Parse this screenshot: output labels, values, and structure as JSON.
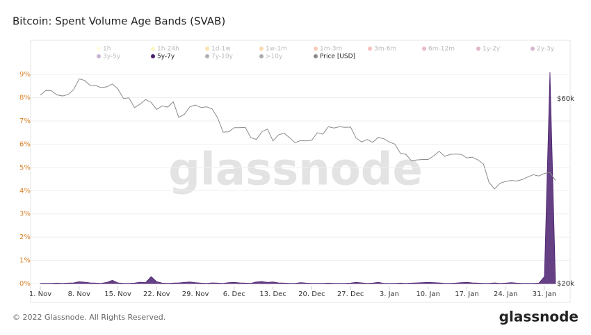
{
  "chart_data": {
    "type": "area_line",
    "title": "Bitcoin: Spent Volume Age Bands (SVAB)",
    "watermark": "glassnode",
    "footer": "© 2022 Glassnode. All Rights Reserved.",
    "logo": "glassnode",
    "categories": [
      "1. Nov",
      null,
      null,
      null,
      null,
      null,
      null,
      "8. Nov",
      null,
      null,
      null,
      null,
      null,
      null,
      "15. Nov",
      null,
      null,
      null,
      null,
      null,
      null,
      "22. Nov",
      null,
      null,
      null,
      null,
      null,
      null,
      "29. Nov",
      null,
      null,
      null,
      null,
      null,
      null,
      "6. Dec",
      null,
      null,
      null,
      null,
      null,
      null,
      "13. Dec",
      null,
      null,
      null,
      null,
      null,
      null,
      "20. Dec",
      null,
      null,
      null,
      null,
      null,
      null,
      "27. Dec",
      null,
      null,
      null,
      null,
      null,
      null,
      "3. Jan",
      null,
      null,
      null,
      null,
      null,
      null,
      "10. Jan",
      null,
      null,
      null,
      null,
      null,
      null,
      "17. Jan",
      null,
      null,
      null,
      null,
      null,
      null,
      "24. Jan",
      null,
      null,
      null,
      null,
      null,
      null,
      "31. Jan",
      null,
      null
    ],
    "ylim": [
      -0.12,
      9.9
    ],
    "yticks": [
      {
        "value": 0,
        "label": "0%"
      },
      {
        "value": 1,
        "label": "1%"
      },
      {
        "value": 2,
        "label": "2%"
      },
      {
        "value": 3,
        "label": "3%"
      },
      {
        "value": 4,
        "label": "4%"
      },
      {
        "value": 5,
        "label": "5%"
      },
      {
        "value": 6,
        "label": "6%"
      },
      {
        "value": 7,
        "label": "7%"
      },
      {
        "value": 8,
        "label": "8%"
      },
      {
        "value": 9,
        "label": "9%"
      }
    ],
    "y2lim": [
      19670,
      78500
    ],
    "y2ticks": [
      {
        "value": 20000,
        "label": "$20k"
      },
      {
        "value": 60000,
        "label": "$60k"
      }
    ],
    "y2_log_scale": true,
    "grid": true,
    "series": [
      {
        "name": "1h",
        "color": "#fff6a8",
        "visible": false
      },
      {
        "name": "1h-24h",
        "color": "#f7e14a",
        "visible": false
      },
      {
        "name": "1d-1w",
        "color": "#f2b818",
        "visible": false
      },
      {
        "name": "1w-1m",
        "color": "#f0921a",
        "visible": false
      },
      {
        "name": "1m-3m",
        "color": "#e8692b",
        "visible": false
      },
      {
        "name": "3m-6m",
        "color": "#e04a44",
        "visible": false
      },
      {
        "name": "6m-12m",
        "color": "#c83a58",
        "visible": false
      },
      {
        "name": "1y-2y",
        "color": "#a8306a",
        "visible": false
      },
      {
        "name": "2y-3y",
        "color": "#862d72",
        "visible": false
      },
      {
        "name": "3y-5y",
        "color": "#62287a",
        "visible": false
      },
      {
        "name": "5y-7y",
        "color": "#4a1f6e",
        "visible": true,
        "kind": "area",
        "values": [
          0.01,
          0.01,
          0.01,
          0.02,
          0.01,
          0.02,
          0.03,
          0.08,
          0.06,
          0.03,
          0.02,
          0.01,
          0.05,
          0.14,
          0.03,
          0.01,
          0.01,
          0.02,
          0.06,
          0.04,
          0.3,
          0.08,
          0.02,
          0.01,
          0.02,
          0.03,
          0.05,
          0.07,
          0.04,
          0.02,
          0.01,
          0.03,
          0.02,
          0.01,
          0.04,
          0.05,
          0.03,
          0.02,
          0.01,
          0.07,
          0.09,
          0.05,
          0.07,
          0.03,
          0.02,
          0.01,
          0.01,
          0.04,
          0.02,
          0.01,
          0.01,
          0.01,
          0.02,
          0.01,
          0.01,
          0.01,
          0.02,
          0.05,
          0.03,
          0.01,
          0.02,
          0.05,
          0.01,
          0.01,
          0.01,
          0.02,
          0.01,
          0.02,
          0.03,
          0.04,
          0.05,
          0.04,
          0.03,
          0.01,
          0.01,
          0.02,
          0.04,
          0.05,
          0.03,
          0.02,
          0.01,
          0.01,
          0.03,
          0.01,
          0.02,
          0.04,
          0.02,
          0.01,
          0.01,
          0.01,
          0.02,
          0.3,
          9.1,
          0.02
        ]
      },
      {
        "name": "7y-10y",
        "color": "#2a1530",
        "visible": false
      },
      {
        "name": ">10y",
        "color": "#111111",
        "visible": false
      },
      {
        "name": "Price [USD]",
        "color": "#8a8a8a",
        "visible": true,
        "kind": "line",
        "axis": "y2",
        "values": [
          61300,
          63000,
          62900,
          61400,
          61000,
          61500,
          63300,
          67500,
          66900,
          64900,
          64900,
          64100,
          64400,
          65500,
          63600,
          60100,
          60300,
          56900,
          58100,
          59700,
          58700,
          56300,
          57500,
          57100,
          58900,
          53700,
          54700,
          57200,
          57800,
          56900,
          57200,
          56500,
          53600,
          49200,
          49300,
          50500,
          50500,
          50600,
          47600,
          47100,
          49300,
          50100,
          46700,
          48400,
          48900,
          47600,
          46200,
          46800,
          46700,
          46900,
          49000,
          48600,
          50800,
          50400,
          50800,
          50600,
          50700,
          47500,
          46400,
          47100,
          46300,
          47700,
          47300,
          46400,
          45800,
          43400,
          43100,
          41500,
          41700,
          41800,
          41800,
          42700,
          43900,
          42600,
          43100,
          43200,
          43100,
          42200,
          42400,
          41700,
          40700,
          36500,
          35100,
          36300,
          36700,
          36900,
          36800,
          37100,
          37700,
          38200,
          37900,
          38500,
          38700,
          36900
        ]
      }
    ]
  }
}
